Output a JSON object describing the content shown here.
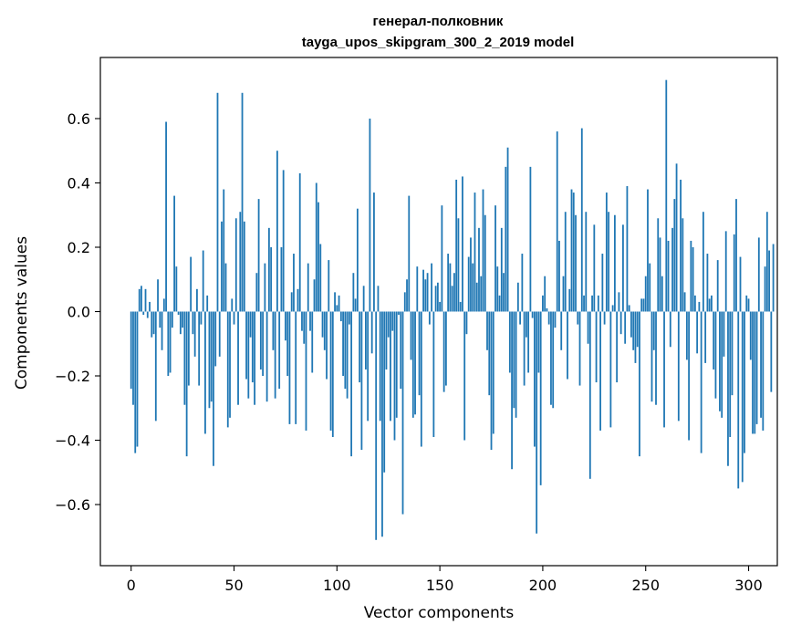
{
  "chart_data": {
    "type": "bar",
    "title": "генерал-полковник",
    "subtitle": "tayga_upos_skipgram_300_2_2019 model",
    "xlabel": "Vector components",
    "ylabel": "Components values",
    "xlim": [
      -14.95,
      313.95
    ],
    "ylim": [
      -0.79,
      0.79
    ],
    "xticks": [
      0,
      50,
      100,
      150,
      200,
      250,
      300
    ],
    "yticks": [
      -0.6,
      -0.4,
      -0.2,
      0.0,
      0.2,
      0.4,
      0.6
    ],
    "ytick_labels": [
      "−0.6",
      "−0.4",
      "−0.2",
      "0.0",
      "0.2",
      "0.4",
      "0.6"
    ],
    "bar_color": "#1f77b4",
    "values": [
      -0.24,
      -0.29,
      -0.44,
      -0.42,
      0.07,
      0.08,
      -0.01,
      0.07,
      -0.02,
      0.03,
      -0.08,
      -0.07,
      -0.34,
      0.1,
      -0.05,
      -0.12,
      0.04,
      0.59,
      -0.2,
      -0.19,
      -0.05,
      0.36,
      0.14,
      -0.01,
      -0.07,
      -0.05,
      -0.29,
      -0.45,
      -0.23,
      0.17,
      -0.07,
      -0.14,
      0.07,
      -0.23,
      -0.04,
      0.19,
      -0.38,
      0.05,
      -0.3,
      -0.28,
      -0.48,
      -0.17,
      0.68,
      -0.14,
      0.28,
      0.38,
      0.15,
      -0.36,
      -0.33,
      0.04,
      -0.04,
      0.29,
      -0.29,
      0.31,
      0.68,
      0.28,
      -0.21,
      -0.27,
      -0.08,
      -0.22,
      -0.29,
      0.12,
      0.35,
      -0.18,
      -0.2,
      0.15,
      -0.28,
      0.26,
      0.2,
      -0.12,
      -0.27,
      0.5,
      -0.24,
      0.2,
      0.44,
      -0.09,
      -0.2,
      -0.35,
      0.06,
      0.18,
      -0.35,
      0.07,
      0.43,
      -0.06,
      -0.1,
      -0.37,
      0.15,
      -0.06,
      -0.19,
      0.1,
      0.4,
      0.34,
      0.21,
      -0.08,
      -0.12,
      -0.21,
      0.16,
      -0.37,
      -0.39,
      0.06,
      0.02,
      0.05,
      -0.03,
      -0.2,
      -0.24,
      -0.27,
      -0.04,
      -0.45,
      0.12,
      0.04,
      0.32,
      -0.22,
      -0.43,
      0.08,
      -0.18,
      -0.34,
      0.6,
      -0.13,
      0.37,
      -0.71,
      0.08,
      -0.34,
      -0.7,
      -0.5,
      -0.18,
      -0.08,
      -0.34,
      -0.06,
      -0.4,
      -0.33,
      -0.01,
      -0.24,
      -0.63,
      0.06,
      0.1,
      0.36,
      -0.15,
      -0.33,
      -0.32,
      0.14,
      -0.26,
      -0.42,
      0.13,
      0.1,
      0.12,
      -0.04,
      0.15,
      -0.39,
      0.08,
      0.09,
      0.03,
      0.33,
      -0.25,
      -0.23,
      0.18,
      0.15,
      0.08,
      0.12,
      0.41,
      0.29,
      0.03,
      0.42,
      -0.4,
      -0.07,
      0.17,
      0.23,
      0.15,
      0.37,
      0.09,
      0.26,
      0.11,
      0.38,
      0.3,
      -0.12,
      -0.26,
      -0.43,
      -0.38,
      0.33,
      0.14,
      0.05,
      0.26,
      0.12,
      0.45,
      0.51,
      -0.19,
      -0.49,
      -0.3,
      -0.33,
      0.09,
      -0.04,
      0.18,
      -0.23,
      -0.08,
      -0.19,
      0.45,
      -0.02,
      -0.42,
      -0.69,
      -0.19,
      -0.54,
      0.05,
      0.11,
      0.01,
      -0.04,
      -0.29,
      -0.3,
      -0.05,
      0.56,
      0.22,
      -0.12,
      0.11,
      0.31,
      -0.21,
      0.07,
      0.38,
      0.37,
      0.3,
      -0.04,
      -0.23,
      0.57,
      0.05,
      0.31,
      -0.1,
      -0.52,
      0.05,
      0.27,
      -0.22,
      0.05,
      -0.37,
      0.18,
      -0.04,
      0.37,
      0.31,
      -0.36,
      0.02,
      0.3,
      -0.22,
      0.06,
      -0.07,
      0.27,
      -0.1,
      0.39,
      0.02,
      -0.08,
      -0.12,
      -0.16,
      -0.11,
      -0.45,
      0.04,
      0.04,
      0.11,
      0.38,
      0.15,
      -0.28,
      -0.12,
      -0.29,
      0.29,
      0.23,
      0.11,
      -0.36,
      0.72,
      0.22,
      -0.11,
      0.26,
      0.35,
      0.46,
      -0.34,
      0.41,
      0.29,
      0.06,
      -0.15,
      -0.4,
      0.22,
      0.2,
      0.05,
      -0.13,
      0.03,
      -0.44,
      0.31,
      -0.16,
      0.18,
      0.04,
      0.05,
      -0.18,
      -0.27,
      0.16,
      -0.31,
      -0.33,
      -0.14,
      0.25,
      -0.48,
      -0.39,
      -0.26,
      0.24,
      0.35,
      -0.55,
      0.17,
      -0.53,
      -0.44,
      0.05,
      0.04,
      -0.15,
      -0.38,
      -0.38,
      -0.35,
      0.23,
      -0.33,
      -0.37,
      0.14,
      0.31,
      0.19,
      -0.25,
      0.21
    ]
  }
}
